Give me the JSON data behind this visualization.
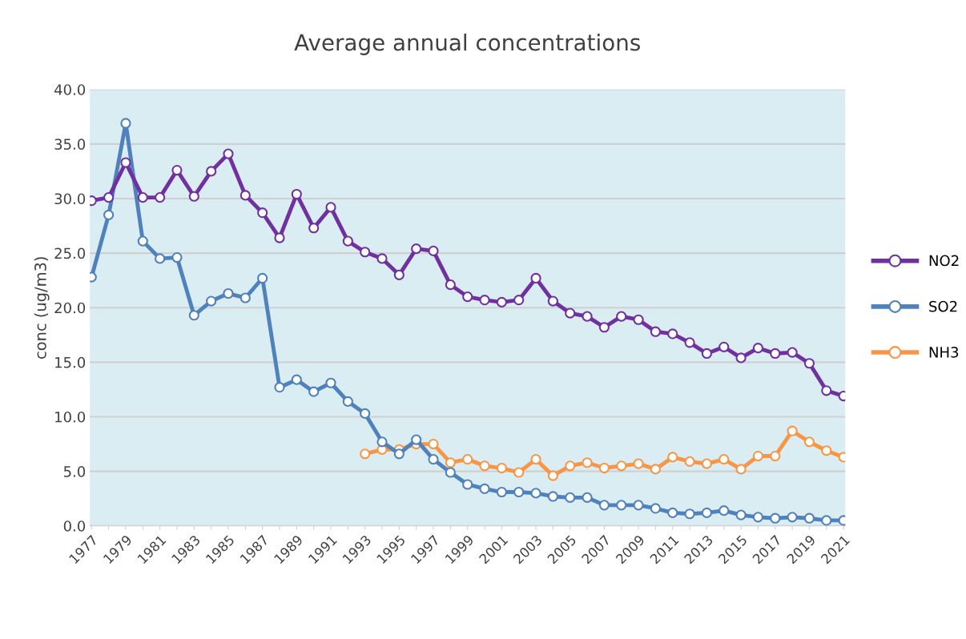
{
  "chart_data": {
    "type": "line",
    "title": "Average annual concentrations",
    "ylabel": "conc (ug/m3)",
    "categories": [
      "1977",
      null,
      "1979",
      null,
      "1981",
      null,
      "1983",
      null,
      "1985",
      null,
      "1987",
      null,
      "1989",
      null,
      "1991",
      null,
      "1993",
      null,
      "1995",
      null,
      "1997",
      null,
      "1999",
      null,
      "2001",
      null,
      "2003",
      null,
      "2005",
      null,
      "2007",
      null,
      "2009",
      null,
      "2011",
      null,
      "2013",
      null,
      "2015",
      null,
      "2017",
      null,
      "2019",
      null,
      "2021"
    ],
    "series": [
      {
        "name": "NO2",
        "color": "#7030a0",
        "values": [
          29.8,
          30.1,
          33.3,
          30.1,
          30.1,
          32.6,
          30.2,
          32.5,
          34.1,
          30.3,
          28.7,
          26.4,
          30.4,
          27.3,
          29.2,
          26.1,
          25.1,
          24.5,
          23.0,
          25.4,
          25.2,
          22.1,
          21.0,
          20.7,
          20.5,
          20.7,
          22.7,
          20.6,
          19.5,
          19.2,
          18.2,
          19.2,
          18.9,
          17.8,
          17.6,
          16.8,
          15.8,
          16.4,
          15.4,
          16.3,
          15.8,
          15.9,
          14.9,
          12.4,
          11.9
        ]
      },
      {
        "name": "SO2",
        "color": "#4f81bd",
        "values": [
          22.8,
          28.5,
          36.9,
          26.1,
          24.5,
          24.6,
          19.3,
          20.6,
          21.3,
          20.9,
          22.7,
          12.7,
          13.4,
          12.3,
          13.1,
          11.4,
          10.3,
          7.7,
          6.6,
          7.9,
          6.1,
          4.9,
          3.8,
          3.4,
          3.1,
          3.1,
          3.0,
          2.7,
          2.6,
          2.6,
          1.9,
          1.9,
          1.9,
          1.6,
          1.2,
          1.1,
          1.2,
          1.4,
          1.0,
          0.8,
          0.7,
          0.8,
          0.7,
          0.5,
          0.5
        ]
      },
      {
        "name": "NH3",
        "color": "#f79646",
        "values": [
          null,
          null,
          null,
          null,
          null,
          null,
          null,
          null,
          null,
          null,
          null,
          null,
          null,
          null,
          null,
          null,
          6.6,
          7.0,
          7.0,
          7.5,
          7.5,
          5.8,
          6.1,
          5.5,
          5.3,
          4.9,
          6.1,
          4.6,
          5.5,
          5.8,
          5.3,
          5.5,
          5.7,
          5.2,
          6.3,
          5.9,
          5.7,
          6.1,
          5.2,
          6.4,
          6.4,
          8.7,
          7.7,
          6.9,
          6.3
        ]
      }
    ],
    "ylim": [
      0,
      40
    ],
    "yticks": [
      {
        "value": 0,
        "label": "0.0"
      },
      {
        "value": 5,
        "label": "5.0"
      },
      {
        "value": 10,
        "label": "10.0"
      },
      {
        "value": 15,
        "label": "15.0"
      },
      {
        "value": 20,
        "label": "20.0"
      },
      {
        "value": 25,
        "label": "25.0"
      },
      {
        "value": 30,
        "label": "30.0"
      },
      {
        "value": 35,
        "label": "35.0"
      },
      {
        "value": 40,
        "label": "40.0"
      }
    ],
    "grid": "y",
    "legend": "right",
    "marker": "circle",
    "line_style": "solid"
  }
}
